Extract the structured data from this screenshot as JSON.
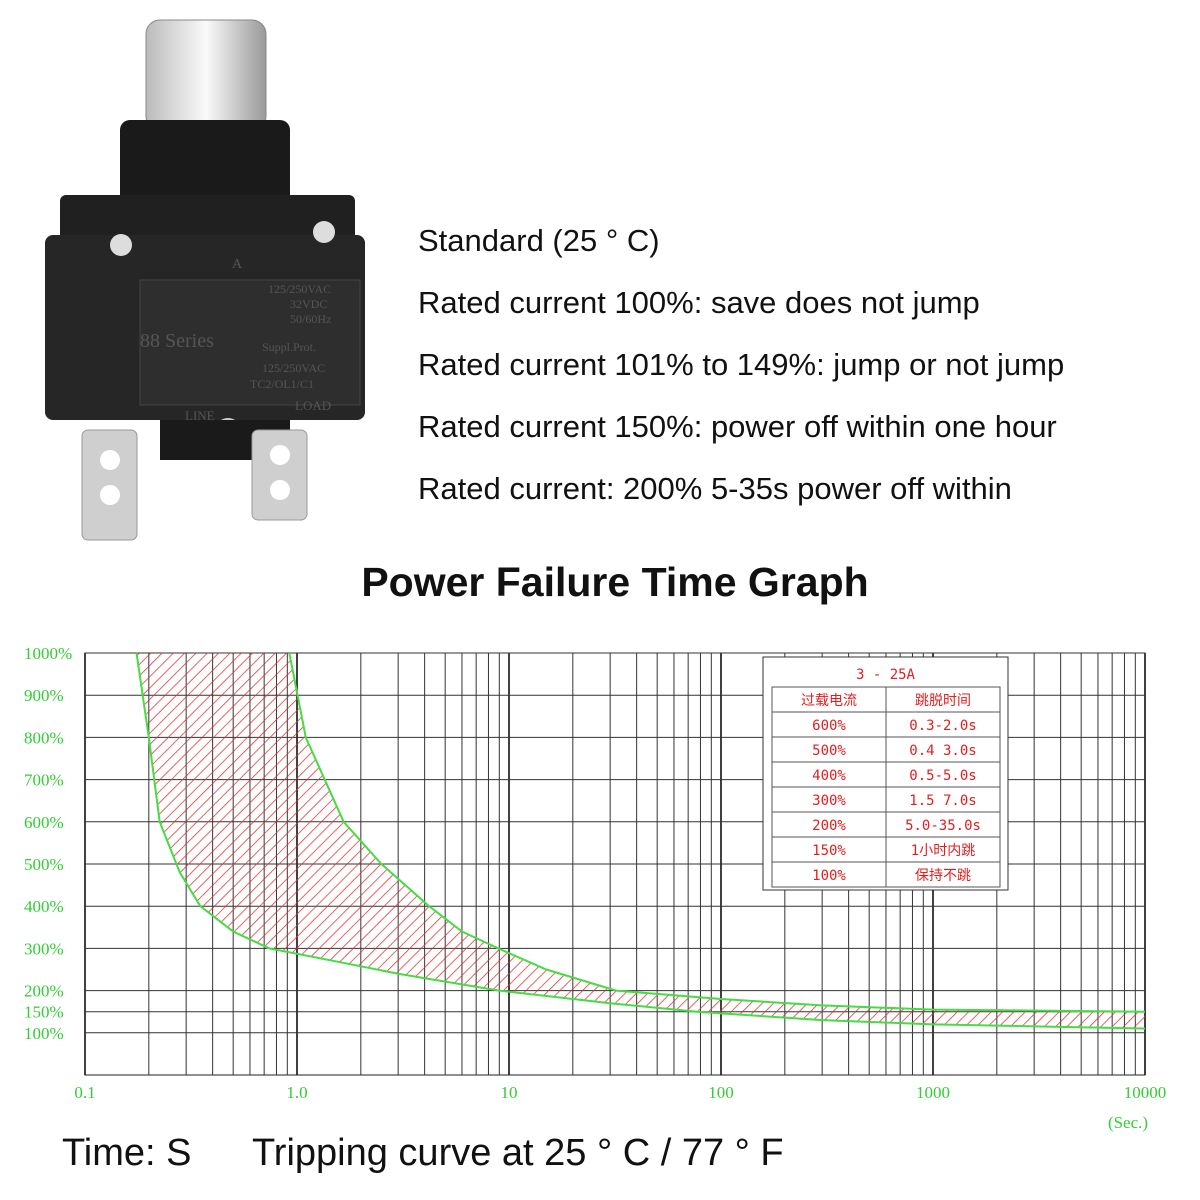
{
  "product": {
    "labels": [
      "A",
      "88 Series",
      "125/250VAC",
      "32VDC",
      "50/60Hz",
      "Suppl.Prot.",
      "125/250VAC",
      "TC2/OL1/C1",
      "LINE",
      "LOAD"
    ],
    "specs": [
      "Standard (25 ° C)",
      "Rated current 100%: save does not jump",
      "Rated current 101% to 149%: jump or not jump",
      "Rated current 150%: power off within one hour",
      "Rated current: 200% 5-35s power off within"
    ]
  },
  "chart_data": {
    "type": "band",
    "title": "Power Failure Time Graph",
    "xlabel": "(Sec.)",
    "log_x": true,
    "grid": true,
    "xlim": [
      0.1,
      10000
    ],
    "xticks": [
      0.1,
      {
        "value": 1,
        "label": "1.0"
      },
      10,
      100,
      1000,
      10000
    ],
    "ylim": [
      0,
      1000
    ],
    "yticks": [
      {
        "value": 100,
        "label": "100%"
      },
      {
        "value": 150,
        "label": "150%"
      },
      {
        "value": 200,
        "label": "200%"
      },
      {
        "value": 300,
        "label": "300%"
      },
      {
        "value": 400,
        "label": "400%"
      },
      {
        "value": 500,
        "label": "500%"
      },
      {
        "value": 600,
        "label": "600%"
      },
      {
        "value": 700,
        "label": "700%"
      },
      {
        "value": 800,
        "label": "800%"
      },
      {
        "value": 900,
        "label": "900%"
      },
      {
        "value": 1000,
        "label": "1000%"
      }
    ],
    "line_color": "#44dd44",
    "fill_color": "#e03030",
    "series": [
      {
        "x": [
          0.175,
          0.2,
          0.225,
          0.28,
          0.35,
          0.5,
          0.74,
          1.5,
          3,
          9,
          30,
          77,
          300,
          1000,
          10000
        ],
        "values": [
          1000,
          800,
          600,
          480,
          400,
          340,
          300,
          270,
          240,
          200,
          170,
          150,
          130,
          120,
          110
        ]
      },
      {
        "x": [
          0.92,
          1.1,
          1.66,
          2.5,
          4.2,
          6,
          8.9,
          15,
          32,
          100,
          300,
          1000,
          10000
        ],
        "values": [
          1000,
          800,
          600,
          500,
          400,
          340,
          300,
          250,
          200,
          180,
          165,
          155,
          150
        ]
      }
    ],
    "table": {
      "title": "3 - 25A",
      "header": [
        "过载电流",
        "跳脱时间"
      ],
      "rows": [
        [
          "600%",
          "0.3-2.0s"
        ],
        [
          "500%",
          "0.4 3.0s"
        ],
        [
          "400%",
          "0.5-5.0s"
        ],
        [
          "300%",
          "1.5 7.0s"
        ],
        [
          "200%",
          "5.0-35.0s"
        ],
        [
          "150%",
          "1小时内跳"
        ],
        [
          "100%",
          "保持不跳"
        ]
      ]
    },
    "footer": [
      "Time: S",
      "Tripping curve at 25 ° C / 77 ° F"
    ]
  }
}
